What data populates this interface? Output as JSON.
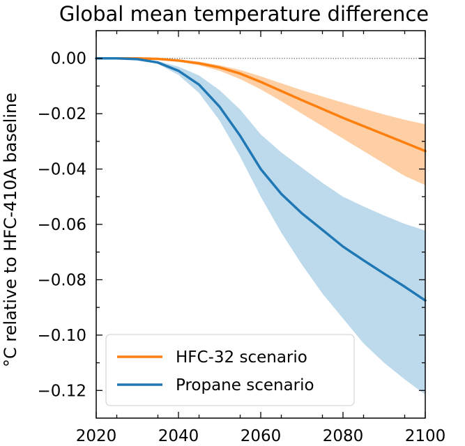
{
  "chart_data": {
    "type": "line",
    "title": "Global mean temperature difference",
    "xlabel": "",
    "ylabel": "°C relative to HFC-410A baseline",
    "xlim": [
      2020,
      2100
    ],
    "ylim": [
      -0.13,
      0.01
    ],
    "x_ticks": [
      2020,
      2040,
      2060,
      2080,
      2100
    ],
    "x_tick_labels": [
      "2020",
      "2040",
      "2060",
      "2080",
      "2100"
    ],
    "y_ticks": [
      0.0,
      -0.02,
      -0.04,
      -0.06,
      -0.08,
      -0.1,
      -0.12
    ],
    "y_tick_labels": [
      "0.00",
      "−0.02",
      "−0.04",
      "−0.06",
      "−0.08",
      "−0.10",
      "−0.12"
    ],
    "zero_line": true,
    "legend_position": "bottom-left",
    "x": [
      2020,
      2025,
      2030,
      2035,
      2040,
      2045,
      2050,
      2055,
      2060,
      2065,
      2070,
      2075,
      2080,
      2085,
      2090,
      2095,
      2100
    ],
    "series": [
      {
        "name": "HFC-32 scenario",
        "color": "#ff7f0e",
        "band_color": "#fdbf87",
        "values": [
          0.0,
          0.0,
          0.0,
          -0.0002,
          -0.0008,
          -0.0018,
          -0.0033,
          -0.0055,
          -0.0085,
          -0.0118,
          -0.0151,
          -0.0183,
          -0.0215,
          -0.0245,
          -0.0275,
          -0.0305,
          -0.0335
        ],
        "lower": [
          0.0,
          0.0,
          0.0,
          -0.0003,
          -0.0012,
          -0.0025,
          -0.0045,
          -0.0075,
          -0.0112,
          -0.0155,
          -0.02,
          -0.0245,
          -0.029,
          -0.0335,
          -0.038,
          -0.0425,
          -0.0458
        ],
        "upper": [
          0.0,
          0.0,
          0.0,
          -0.0001,
          -0.0005,
          -0.0012,
          -0.0025,
          -0.0042,
          -0.0065,
          -0.009,
          -0.0115,
          -0.0138,
          -0.016,
          -0.0182,
          -0.0203,
          -0.0222,
          -0.0238
        ]
      },
      {
        "name": "Propane scenario",
        "color": "#1f77b4",
        "band_color": "#a7cde6",
        "values": [
          0.0,
          0.0,
          -0.0003,
          -0.0015,
          -0.0045,
          -0.0095,
          -0.0175,
          -0.028,
          -0.04,
          -0.049,
          -0.056,
          -0.062,
          -0.068,
          -0.073,
          -0.0778,
          -0.0825,
          -0.0875
        ],
        "lower": [
          0.0,
          0.0,
          -0.0004,
          -0.002,
          -0.006,
          -0.0125,
          -0.0225,
          -0.0355,
          -0.05,
          -0.063,
          -0.0745,
          -0.085,
          -0.094,
          -0.103,
          -0.11,
          -0.116,
          -0.1215
        ],
        "upper": [
          0.0,
          0.0,
          -0.0002,
          -0.001,
          -0.003,
          -0.0062,
          -0.0115,
          -0.0185,
          -0.0275,
          -0.034,
          -0.0395,
          -0.045,
          -0.05,
          -0.0535,
          -0.0568,
          -0.0598,
          -0.0622
        ]
      }
    ]
  }
}
